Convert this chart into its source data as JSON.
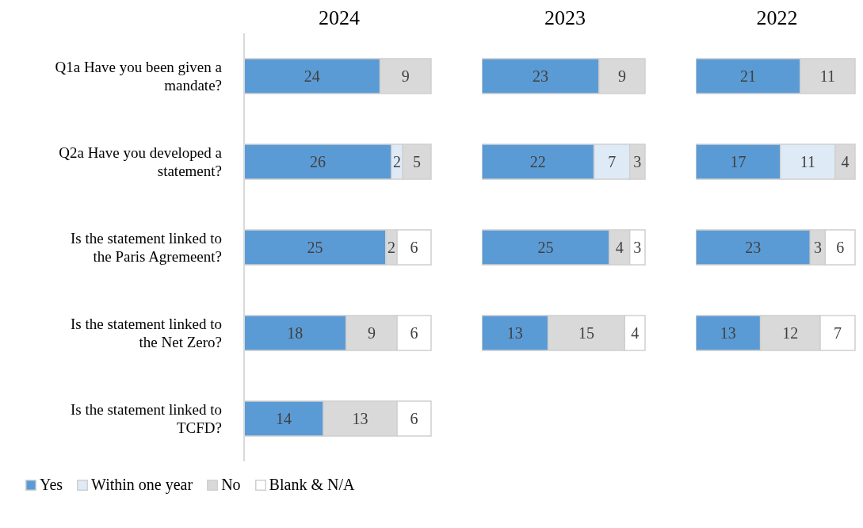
{
  "chart_data": [
    {
      "type": "bar",
      "title": "2024",
      "orientation": "horizontal",
      "stacked": true,
      "data_labels": true,
      "legend": "bottom left",
      "tick_labels": "y",
      "categories": [
        "Q1a Have you been given a mandate?",
        "Q2a Have you developed a statement?",
        "Is the statement linked to the Paris Agremeent?",
        "Is the statement linked to the Net Zero?",
        "Is the statement linked to TCFD?"
      ],
      "series": [
        {
          "name": "Yes",
          "color": "#5b9bd5",
          "values": [
            24,
            26,
            25,
            18,
            14
          ]
        },
        {
          "name": "Within one year",
          "color": "#deebf7",
          "values": [
            null,
            2,
            null,
            null,
            null
          ]
        },
        {
          "name": "No",
          "color": "#d9d9d9",
          "values": [
            9,
            5,
            2,
            9,
            13
          ]
        },
        {
          "name": "Blank & N/A",
          "color": "#ffffff",
          "values": [
            null,
            null,
            6,
            6,
            6
          ]
        }
      ]
    },
    {
      "type": "bar",
      "title": "2023",
      "orientation": "horizontal",
      "stacked": true,
      "data_labels": true,
      "tick_labels": false,
      "categories": [
        null,
        null,
        null,
        null
      ],
      "series": [
        {
          "color": "#5b9bd5",
          "values": [
            23,
            22,
            25,
            13
          ]
        },
        {
          "color": "#deebf7",
          "values": [
            null,
            7,
            null,
            null
          ]
        },
        {
          "color": "#d9d9d9",
          "values": [
            9,
            3,
            4,
            15
          ]
        },
        {
          "color": "#ffffff",
          "values": [
            null,
            null,
            3,
            4
          ]
        }
      ]
    },
    {
      "type": "bar",
      "title": "2022",
      "orientation": "horizontal",
      "stacked": true,
      "data_labels": true,
      "tick_labels": false,
      "categories": [
        null,
        null,
        null,
        null
      ],
      "series": [
        {
          "color": "#5b9bd5",
          "values": [
            21,
            17,
            23,
            13
          ]
        },
        {
          "color": "#deebf7",
          "values": [
            null,
            11,
            null,
            null
          ]
        },
        {
          "color": "#d9d9d9",
          "values": [
            11,
            4,
            3,
            12
          ]
        },
        {
          "color": "#ffffff",
          "values": [
            null,
            null,
            6,
            7
          ]
        }
      ]
    }
  ]
}
